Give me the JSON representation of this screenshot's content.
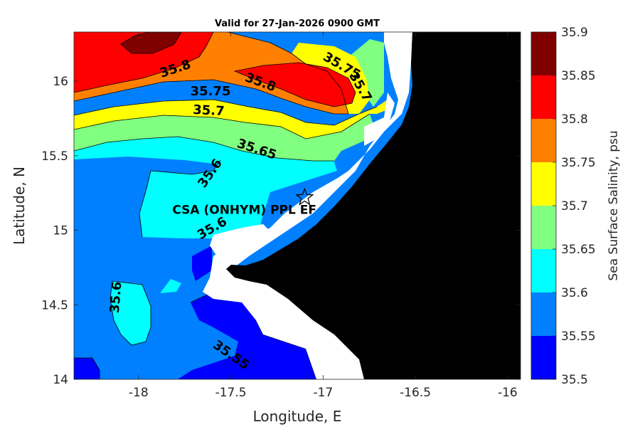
{
  "title": "Valid for 27-Jan-2026 0900 GMT",
  "x_axis": {
    "label": "Longitude, E",
    "range": [
      -18.35,
      -15.93
    ],
    "ticks": [
      {
        "value": -18,
        "label": "-18"
      },
      {
        "value": -17.5,
        "label": "-17.5"
      },
      {
        "value": -17,
        "label": "-17"
      },
      {
        "value": -16.5,
        "label": "-16.5"
      },
      {
        "value": -16,
        "label": "-16"
      }
    ]
  },
  "y_axis": {
    "label": "Latitude, N",
    "range": [
      14.0,
      16.33
    ],
    "ticks": [
      {
        "value": 14,
        "label": "14"
      },
      {
        "value": 14.5,
        "label": "14.5"
      },
      {
        "value": 15,
        "label": "15"
      },
      {
        "value": 15.5,
        "label": "15.5"
      },
      {
        "value": 16,
        "label": "16"
      }
    ]
  },
  "site": {
    "name": "CSA (ONHYM) PPL EF",
    "lon": -17.1,
    "lat": 15.22,
    "marker": "star-icon"
  },
  "contour_labels": [
    {
      "text": "35.8",
      "lon": -17.8,
      "lat": 16.08,
      "rotate": -18
    },
    {
      "text": "35.8",
      "lon": -17.34,
      "lat": 15.99,
      "rotate": 20
    },
    {
      "text": "35.75",
      "lon": -17.61,
      "lat": 15.93,
      "rotate": 0
    },
    {
      "text": "35.75",
      "lon": -16.9,
      "lat": 16.1,
      "rotate": 30
    },
    {
      "text": "35.7",
      "lon": -16.8,
      "lat": 15.96,
      "rotate": 60
    },
    {
      "text": "35.7",
      "lon": -17.62,
      "lat": 15.8,
      "rotate": 3
    },
    {
      "text": "35.65",
      "lon": -17.36,
      "lat": 15.54,
      "rotate": 18
    },
    {
      "text": "35.6",
      "lon": -17.61,
      "lat": 15.38,
      "rotate": -55
    },
    {
      "text": "35.6",
      "lon": -17.6,
      "lat": 15.01,
      "rotate": -30
    },
    {
      "text": "35.6",
      "lon": -18.12,
      "lat": 14.55,
      "rotate": -85
    },
    {
      "text": "35.55",
      "lon": -17.5,
      "lat": 14.16,
      "rotate": 35
    }
  ],
  "colorbar": {
    "label": "Sea Surface Salinity, psu",
    "levels": [
      35.5,
      35.55,
      35.6,
      35.65,
      35.7,
      35.75,
      35.8,
      35.85,
      35.9
    ],
    "tick_labels": [
      "35.5",
      "35.55",
      "35.6",
      "35.65",
      "35.7",
      "35.75",
      "35.8",
      "35.85",
      "35.9"
    ],
    "colors": [
      "#0000ff",
      "#0080ff",
      "#00ffff",
      "#80ff80",
      "#ffff00",
      "#ff8000",
      "#ff0000",
      "#800000"
    ]
  },
  "colors": {
    "land": "#000000",
    "no_data": "#ffffff",
    "contour_line": "#000000"
  }
}
